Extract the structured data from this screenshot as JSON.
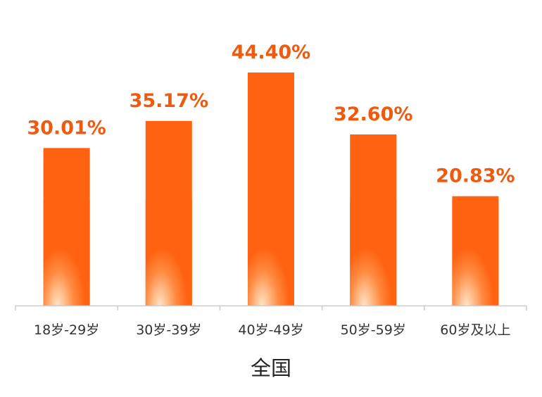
{
  "chart_data": {
    "type": "bar",
    "title": "",
    "xlabel": "全国",
    "ylabel": "",
    "categories": [
      "18岁-29岁",
      "30岁-39岁",
      "40岁-49岁",
      "50岁-59岁",
      "60岁及以上"
    ],
    "values": [
      30.01,
      35.17,
      44.4,
      32.6,
      20.83
    ],
    "data_labels": [
      "30.01%",
      "35.17%",
      "44.40%",
      "32.60%",
      "20.83%"
    ],
    "ylim": [
      0,
      50
    ],
    "grid": false,
    "legend": "none"
  },
  "colors": {
    "bar_main": "#FF6210",
    "bar_glow": "#FFE3C6",
    "label": "#F05A0F",
    "axis": "#CCCCCC"
  }
}
